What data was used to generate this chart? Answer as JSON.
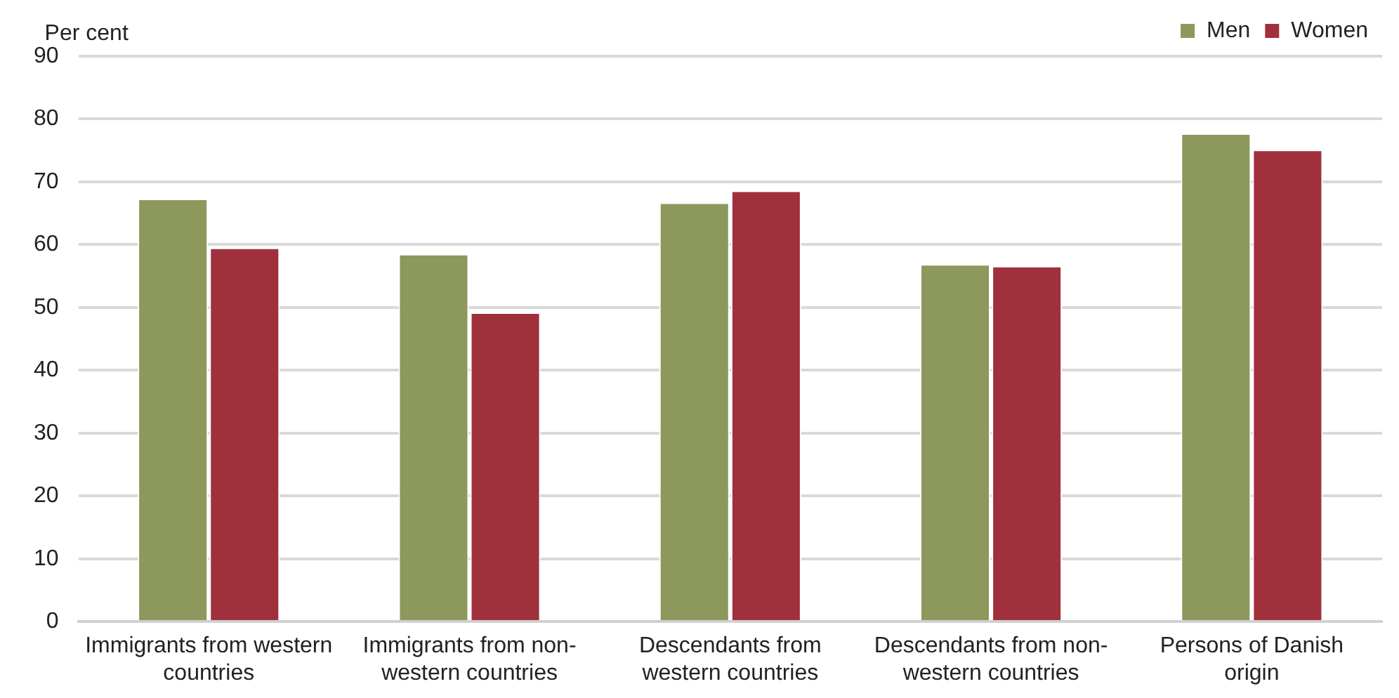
{
  "chart_data": {
    "type": "bar",
    "ylabel": "Per cent",
    "categories": [
      "Immigrants from western countries",
      "Immigrants from non-western countries",
      "Descendants from western countries",
      "Descendants from non-western countries",
      "Persons of Danish origin"
    ],
    "series": [
      {
        "name": "Men",
        "color": "#8c985c",
        "values": [
          67.3,
          58.5,
          66.7,
          56.9,
          77.7
        ]
      },
      {
        "name": "Women",
        "color": "#a0303c",
        "values": [
          59.5,
          49.2,
          68.6,
          56.6,
          75.1
        ]
      }
    ],
    "ylim": [
      0,
      90
    ],
    "yticks": [
      0,
      10,
      20,
      30,
      40,
      50,
      60,
      70,
      80,
      90
    ],
    "grid": "y",
    "legend": "top right"
  }
}
